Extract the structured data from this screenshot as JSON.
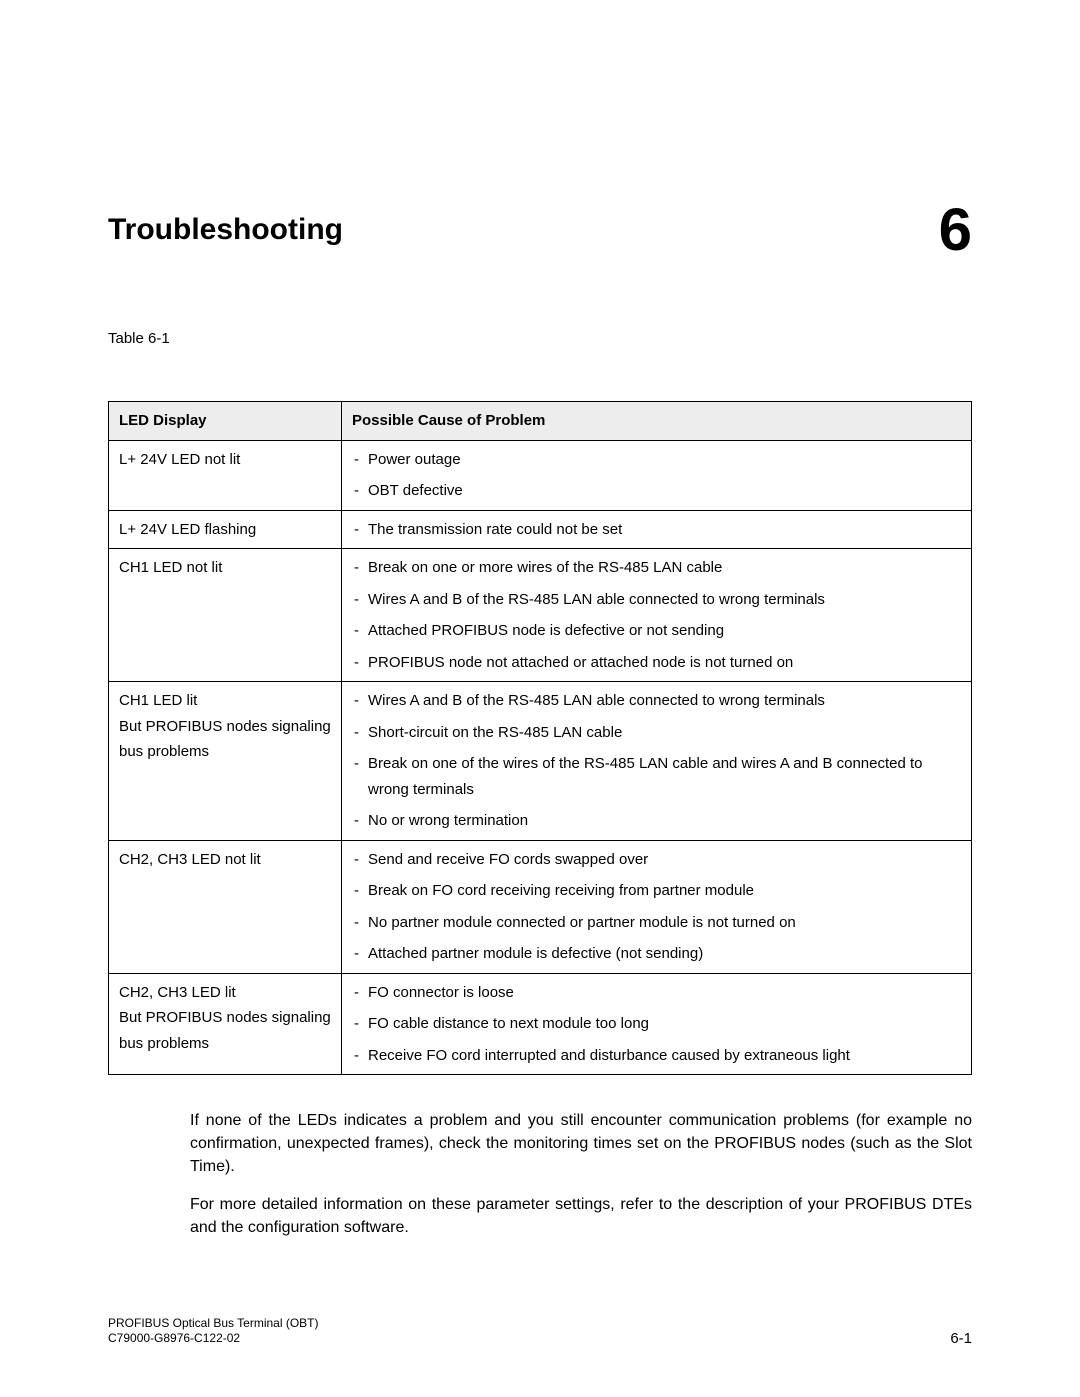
{
  "header": {
    "title": "Troubleshooting",
    "chapter_number": "6"
  },
  "table": {
    "caption": "Table 6-1",
    "columns": [
      "LED Display",
      "Possible Cause of Problem"
    ],
    "rows": [
      {
        "led": "L+ 24V LED not lit",
        "causes": [
          "Power outage",
          "OBT defective"
        ]
      },
      {
        "led": "L+ 24V LED flashing",
        "causes": [
          "The transmission rate could not be set"
        ]
      },
      {
        "led": "CH1 LED not lit",
        "causes": [
          "Break on one or more wires of the RS-485 LAN cable",
          "Wires A and B of the RS-485 LAN able connected to wrong terminals",
          "Attached PROFIBUS node is defective or not sending",
          "PROFIBUS node not attached or attached node is not turned on"
        ]
      },
      {
        "led": "CH1 LED lit\nBut PROFIBUS nodes signaling bus problems",
        "causes": [
          "Wires A and B of the RS-485 LAN able connected to wrong terminals",
          "Short-circuit on the RS-485 LAN cable",
          "Break on one of the wires of the RS-485 LAN cable and wires A and B connected to wrong terminals",
          "No or wrong termination"
        ]
      },
      {
        "led": "CH2, CH3 LED not lit",
        "causes": [
          "Send and receive FO cords swapped over",
          "Break on FO cord receiving receiving from partner module",
          "No partner module connected or partner module is not turned on",
          "Attached partner module is defective (not sending)"
        ]
      },
      {
        "led": "CH2, CH3 LED lit\nBut PROFIBUS nodes signaling bus problems",
        "causes": [
          "FO connector is loose",
          "FO cable distance to next module too long",
          "Receive FO cord interrupted and disturbance caused by extraneous light"
        ]
      }
    ]
  },
  "paragraphs": {
    "p1": "If none of the LEDs indicates a problem and you still encounter communication problems (for example no confirmation, unexpected frames), check the monitoring times set on the PROFIBUS nodes (such as the Slot Time).",
    "p2": "For more detailed information on these parameter settings, refer to the description of your PROFIBUS DTEs and the configuration software."
  },
  "footer": {
    "line1": "PROFIBUS Optical Bus Terminal (OBT)",
    "line2": "C79000-G8976-C122-02",
    "page": "6-1"
  }
}
